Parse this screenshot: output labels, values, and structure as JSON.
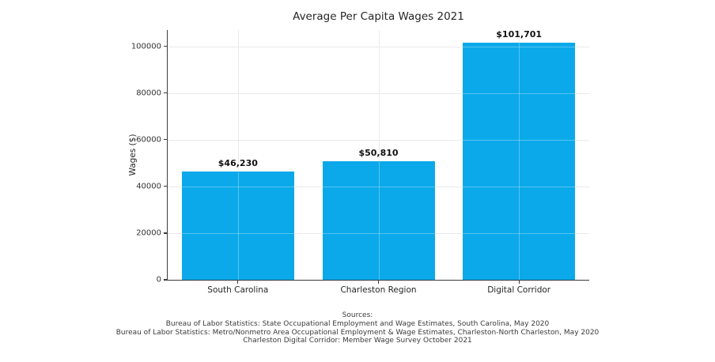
{
  "chart_data": {
    "type": "bar",
    "title": "Average Per Capita Wages 2021",
    "xlabel": "",
    "ylabel": "Wages ($)",
    "categories": [
      "South Carolina",
      "Charleston Region",
      "Digital Corridor"
    ],
    "values": [
      46230,
      50810,
      101701
    ],
    "value_labels": [
      "$46,230",
      "$50,810",
      "$101,701"
    ],
    "yticks": [
      0,
      20000,
      40000,
      60000,
      80000,
      100000
    ],
    "ytick_labels": [
      "0",
      "20000",
      "40000",
      "60000",
      "80000",
      "100000"
    ],
    "ylim": [
      0,
      107000
    ],
    "grid": true,
    "legend_position": "none",
    "bar_color": "#0BA9EA"
  },
  "sources": {
    "heading": "Sources:",
    "lines": [
      "Bureau of Labor Statistics: State Occupational Employment and Wage Estimates, South Carolina, May 2020",
      "Bureau of Labor Statistics: Metro/Nonmetro Area Occupational Employment & Wage Estimates, Charleston-North Charleston, May 2020",
      "Charleston Digital Corridor: Member Wage Survey October 2021"
    ]
  },
  "colors": {
    "bar": "#0BA9EA",
    "spine": "#3c3c3c",
    "gridline": "#e1e1e1",
    "title_text": "#262626",
    "value_label_text": "#111111",
    "background": "#ffffff"
  }
}
